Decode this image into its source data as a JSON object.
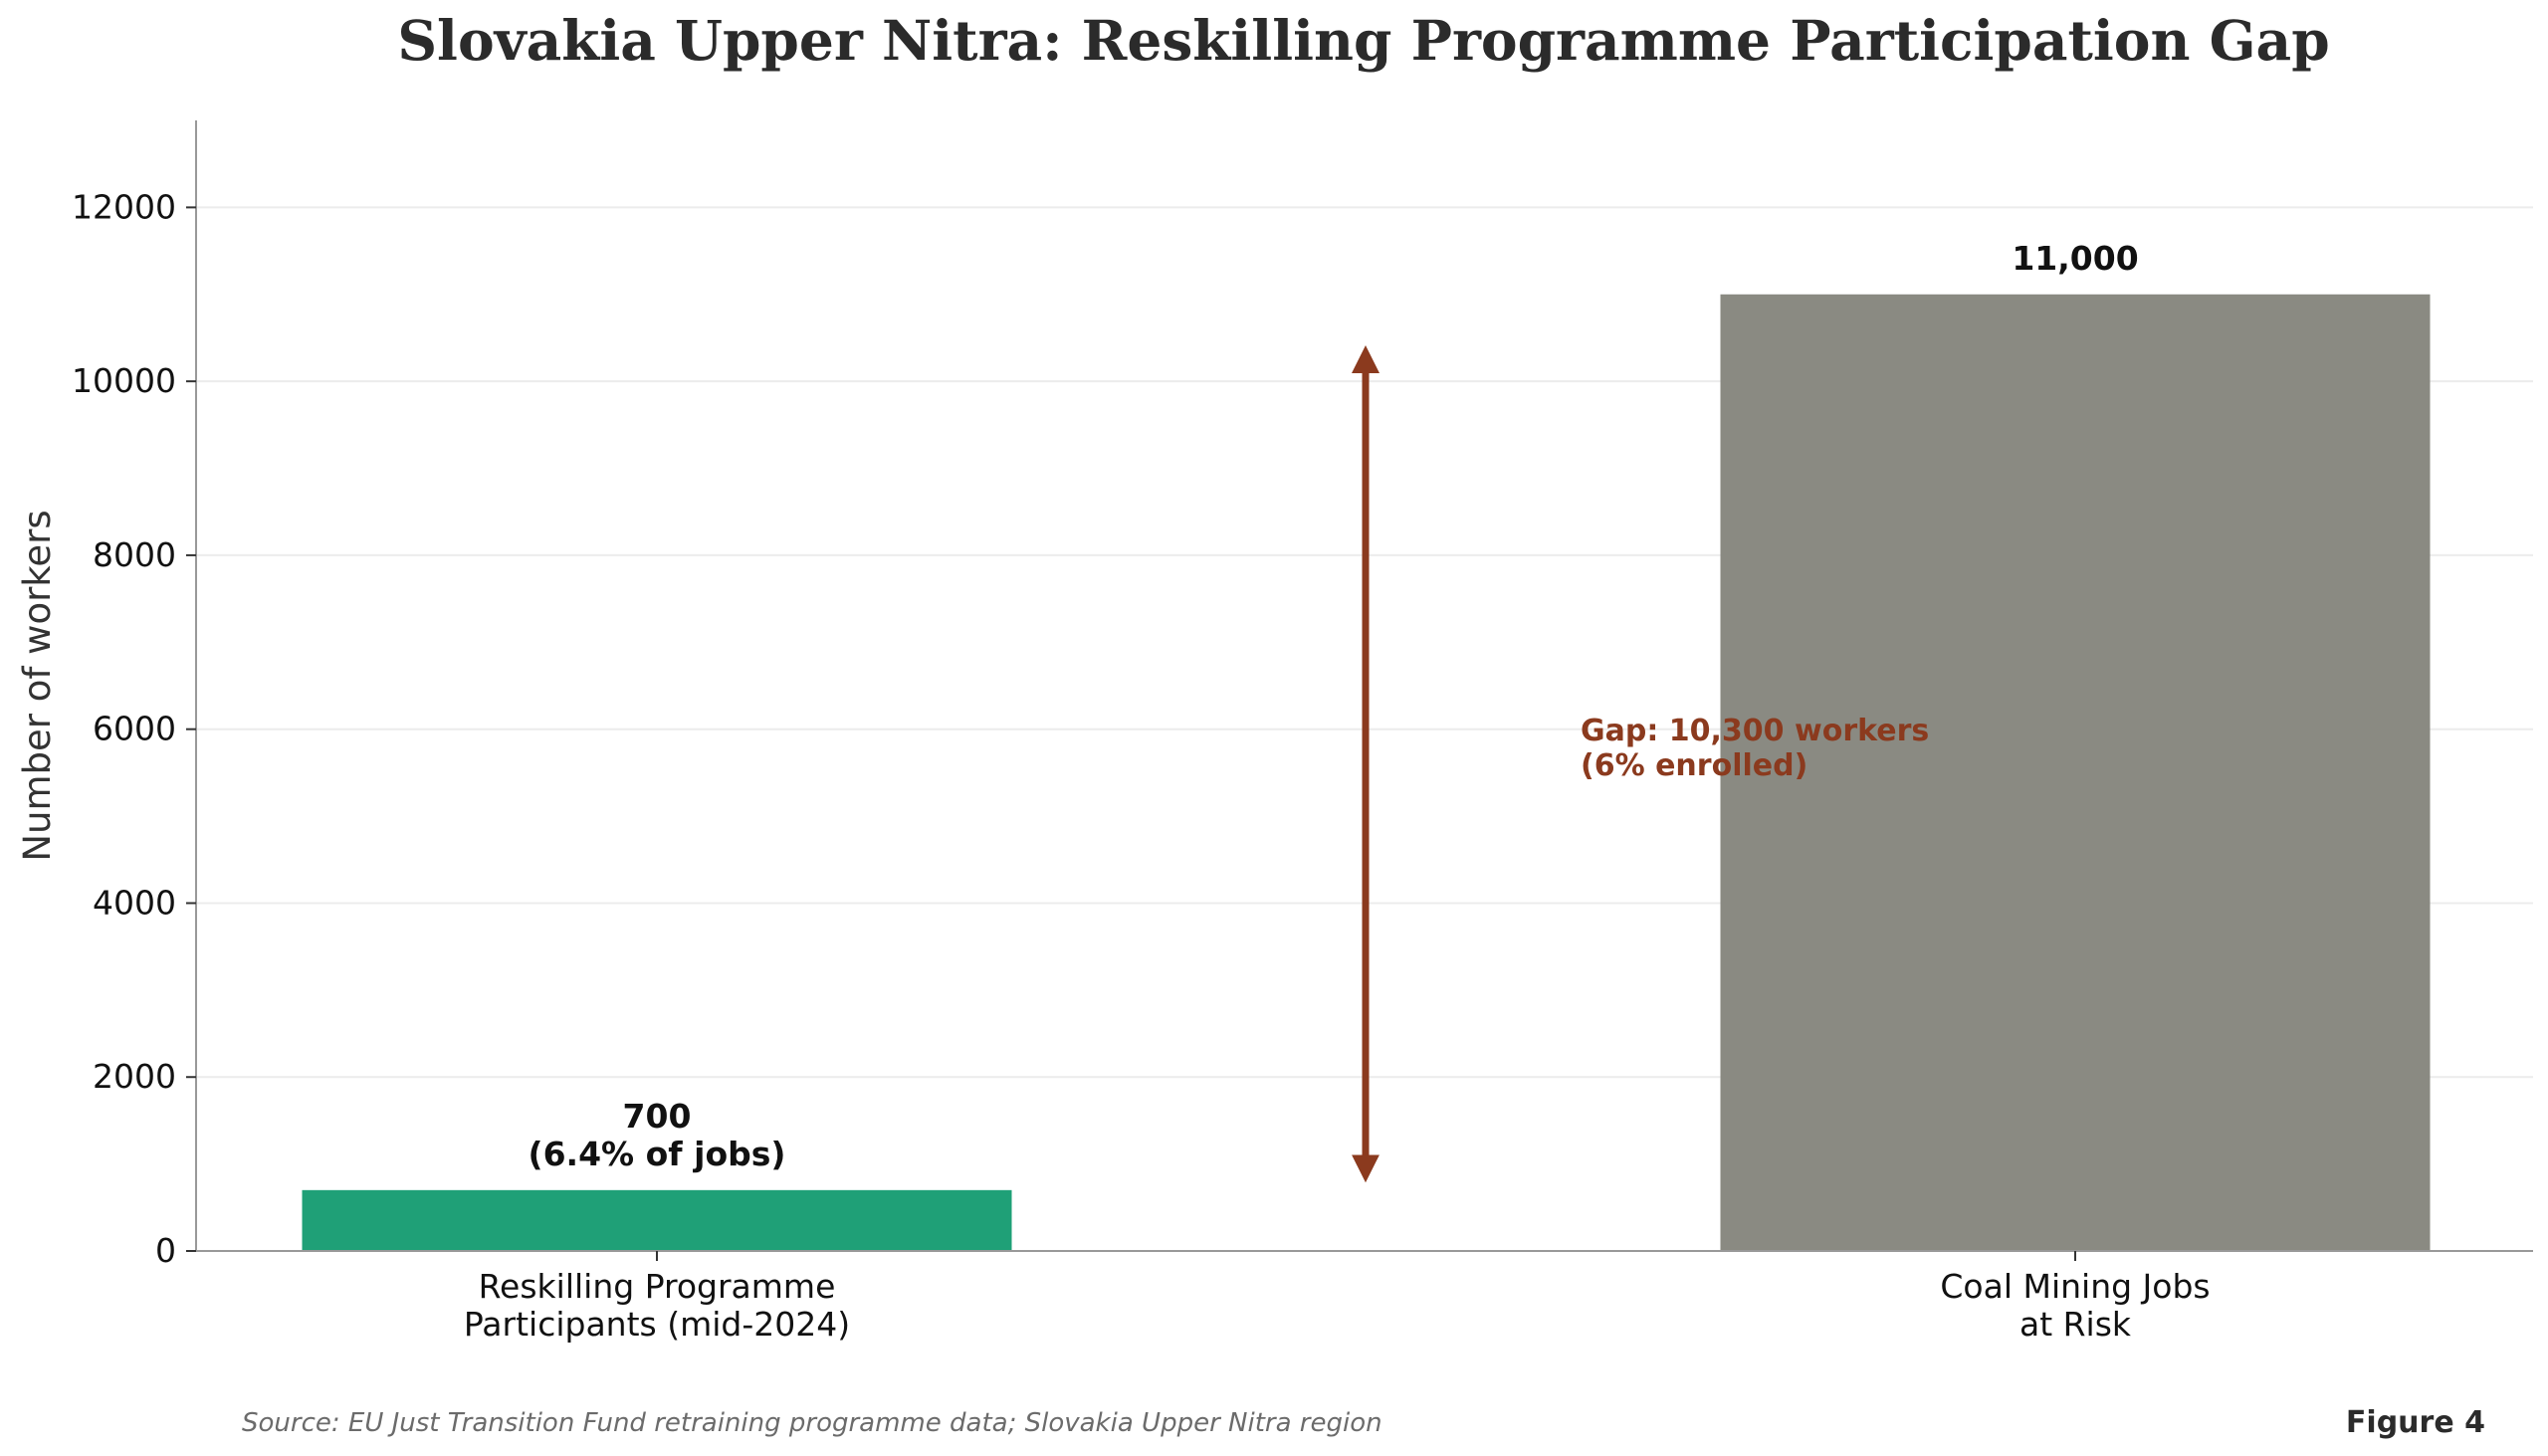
{
  "chart_data": {
    "type": "bar",
    "title": "Slovakia Upper Nitra: Reskilling Programme Participation Gap",
    "xlabel": "",
    "ylabel": "Number of workers",
    "ylim": [
      0,
      13000
    ],
    "yticks": [
      0,
      2000,
      4000,
      6000,
      8000,
      10000,
      12000
    ],
    "grid": "horizontal",
    "categories": [
      [
        "Reskilling Programme",
        "Participants (mid-2024)"
      ],
      [
        "Coal Mining Jobs",
        "at Risk"
      ]
    ],
    "values": [
      700,
      11000
    ],
    "colors": [
      "#1fa077",
      "#8a8a82"
    ],
    "data_labels": [
      [
        "700",
        "(6.4% of jobs)"
      ],
      [
        "11,000"
      ]
    ],
    "annotation": {
      "lines": [
        "Gap: 10,300 workers",
        "(6% enrolled)"
      ],
      "color": "#8b3a1e",
      "arrow_from": 800,
      "arrow_to": 10400
    }
  },
  "source": "Source: EU Just Transition Fund retraining programme data; Slovakia Upper Nitra region",
  "figure_label": "Figure 4"
}
